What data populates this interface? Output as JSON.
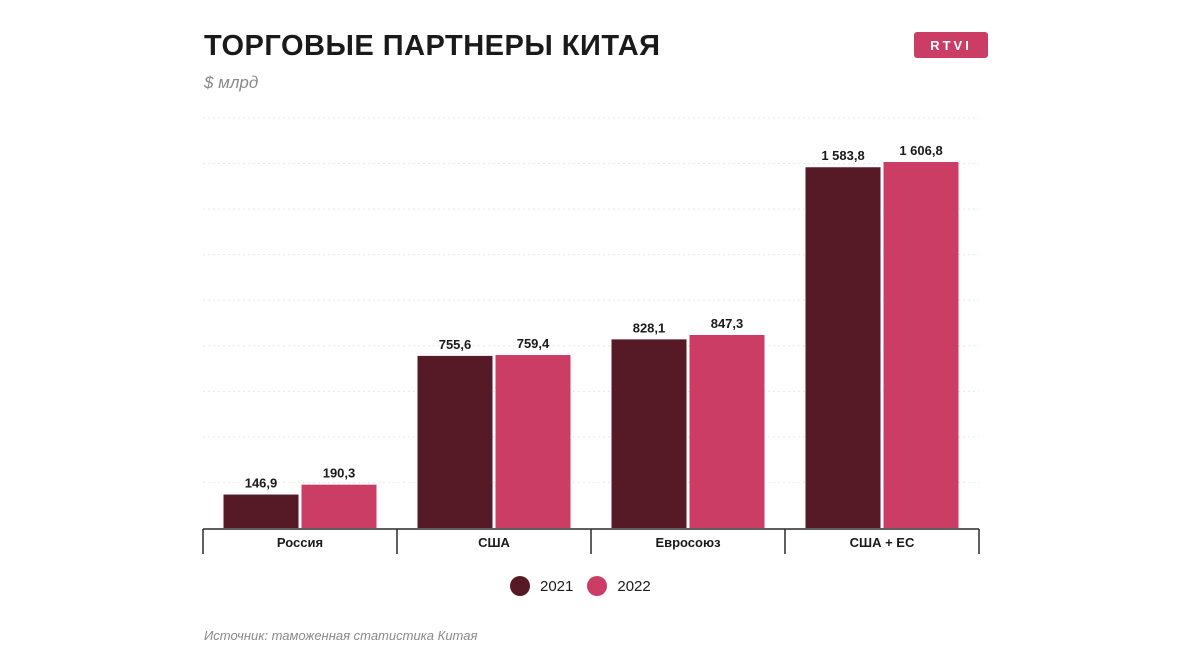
{
  "header": {
    "title": "ТОРГОВЫЕ ПАРТНЕРЫ КИТАЯ",
    "unit": "$ млрд",
    "logo_text": "RTVI"
  },
  "footer": {
    "source": "Источник: таможенная статистика Китая"
  },
  "colors": {
    "series_2021": "#561a26",
    "series_2022": "#cc3d66",
    "axis": "#2a2a2a",
    "grid": "#e8e8e8",
    "logo": "#cc3d66"
  },
  "chart_data": {
    "type": "bar",
    "title": "ТОРГОВЫЕ ПАРТНЕРЫ КИТАЯ",
    "ylabel": "$ млрд",
    "categories": [
      "Россия",
      "США",
      "Евросоюз",
      "США + ЕС"
    ],
    "series": [
      {
        "name": "2021",
        "values": [
          146.9,
          755.6,
          828.1,
          1583.8
        ],
        "labels": [
          "146,9",
          "755,6",
          "828,1",
          "1 583,8"
        ]
      },
      {
        "name": "2022",
        "values": [
          190.3,
          759.4,
          847.3,
          1606.8
        ],
        "labels": [
          "190,3",
          "759,4",
          "847,3",
          "1 606,8"
        ]
      }
    ],
    "ylim": [
      0,
      1800
    ],
    "grid": true,
    "legend": "bottom-center"
  }
}
